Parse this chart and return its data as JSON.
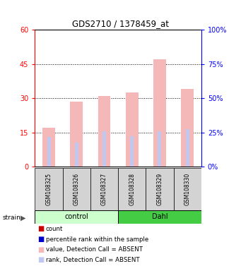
{
  "title": "GDS2710 / 1378459_at",
  "samples": [
    "GSM108325",
    "GSM108326",
    "GSM108327",
    "GSM108328",
    "GSM108329",
    "GSM108330"
  ],
  "groups": [
    "control",
    "control",
    "control",
    "Dahl",
    "Dahl",
    "Dahl"
  ],
  "bar_values": [
    17.0,
    28.5,
    31.0,
    32.5,
    47.0,
    34.0
  ],
  "rank_values_pct": [
    21.5,
    17.5,
    26.0,
    22.0,
    26.0,
    27.5
  ],
  "bar_color_absent": "#f4b8b8",
  "rank_color_absent": "#c0c8f0",
  "left_yticks": [
    0,
    15,
    30,
    45,
    60
  ],
  "right_yticks": [
    0,
    25,
    50,
    75,
    100
  ],
  "left_ylim": [
    0,
    60
  ],
  "right_ylim": [
    0,
    100
  ],
  "group_colors": {
    "control": "#ccffcc",
    "Dahl": "#44cc44"
  },
  "legend_items": [
    {
      "color": "#cc0000",
      "label": "count"
    },
    {
      "color": "#0000cc",
      "label": "percentile rank within the sample"
    },
    {
      "color": "#f4b8b8",
      "label": "value, Detection Call = ABSENT"
    },
    {
      "color": "#c0c8f0",
      "label": "rank, Detection Call = ABSENT"
    }
  ],
  "bar_width": 0.45
}
